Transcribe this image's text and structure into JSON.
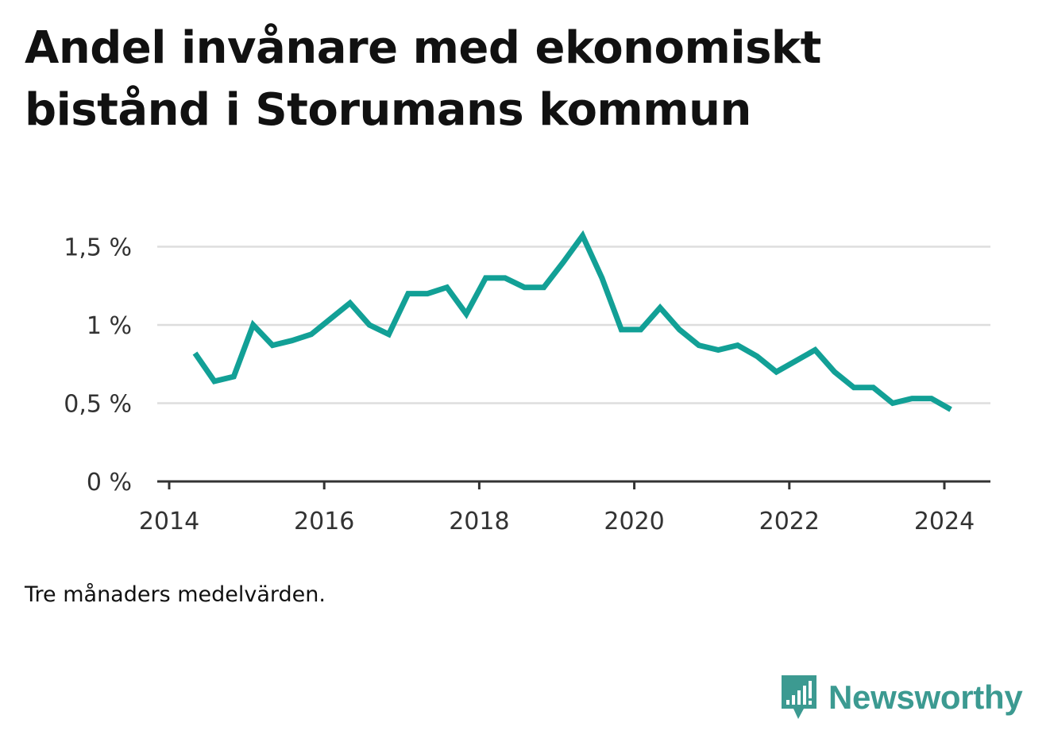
{
  "title": "Andel invånare med ekonomiskt bistånd i Storumans kommun",
  "note": "Tre månaders medelvärden.",
  "brand": {
    "name": "Newsworthy",
    "icon": "newsworthy-logo-icon",
    "color": "#3c9a91"
  },
  "colors": {
    "line": "#12a096",
    "grid": "#dddddd",
    "axis": "#333333"
  },
  "chart_data": {
    "type": "line",
    "title": "Andel invånare med ekonomiskt bistånd i Storumans kommun",
    "xlabel": "",
    "ylabel": "",
    "x_ticks": [
      "2014",
      "2016",
      "2018",
      "2020",
      "2022",
      "2024"
    ],
    "y_ticks": [
      "0 %",
      "0,5 %",
      "1 %",
      "1,5 %"
    ],
    "ylim": [
      0,
      1.6
    ],
    "xlim": [
      2014,
      2024.6
    ],
    "grid": true,
    "series": [
      {
        "x": [
          "2014-05",
          "2014-08",
          "2014-11",
          "2015-02",
          "2015-05",
          "2015-08",
          "2015-11",
          "2016-02",
          "2016-05",
          "2016-08",
          "2016-11",
          "2017-02",
          "2017-05",
          "2017-08",
          "2017-11",
          "2018-02",
          "2018-05",
          "2018-08",
          "2018-11",
          "2019-02",
          "2019-05",
          "2019-08",
          "2019-11",
          "2020-02",
          "2020-05",
          "2020-08",
          "2020-11",
          "2021-02",
          "2021-05",
          "2021-08",
          "2021-11",
          "2022-02",
          "2022-05",
          "2022-08",
          "2022-11",
          "2023-02",
          "2023-05",
          "2023-08",
          "2023-11",
          "2024-02"
        ],
        "values": [
          0.82,
          0.64,
          0.67,
          1.0,
          0.87,
          0.9,
          0.94,
          1.04,
          1.14,
          1.0,
          0.94,
          1.2,
          1.2,
          1.24,
          1.07,
          1.3,
          1.3,
          1.24,
          1.24,
          1.4,
          1.57,
          1.3,
          0.97,
          0.97,
          1.11,
          0.97,
          0.87,
          0.84,
          0.87,
          0.8,
          0.7,
          0.77,
          0.84,
          0.7,
          0.6,
          0.6,
          0.5,
          0.53,
          0.53,
          0.46
        ]
      }
    ]
  }
}
